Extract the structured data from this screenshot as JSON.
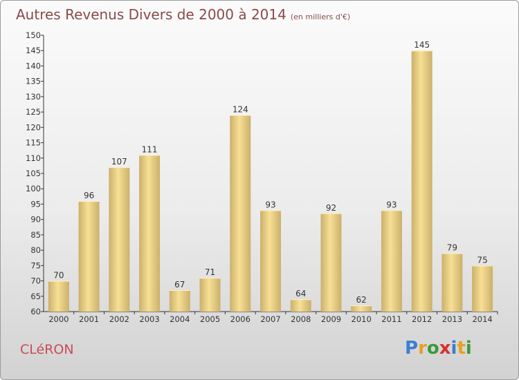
{
  "header": {
    "title": "Autres Revenus Divers de 2000 à 2014",
    "subtitle": "(en milliers d'€)"
  },
  "footer": {
    "commune": "CLéRON",
    "logo_text": "Proxiti",
    "logo_letters": [
      "P",
      "r",
      "o",
      "x",
      "i",
      "t",
      "i"
    ],
    "logo_colors": [
      "#3a7fd0",
      "#e8a020",
      "#3a9a3a",
      "#d83030",
      "#3a7fd0",
      "#e8a020",
      "#3a9a3a"
    ]
  },
  "chart_data": {
    "type": "bar",
    "categories": [
      "2000",
      "2001",
      "2002",
      "2003",
      "2004",
      "2005",
      "2006",
      "2007",
      "2008",
      "2009",
      "2010",
      "2011",
      "2012",
      "2013",
      "2014"
    ],
    "values": [
      70,
      96,
      107,
      111,
      67,
      71,
      124,
      93,
      64,
      92,
      62,
      93,
      145,
      79,
      75
    ],
    "ylim": [
      60,
      150
    ],
    "ytick_step": 5,
    "grid": false,
    "colors": {
      "bar_light": "#f7df94",
      "bar_dark": "#cbb06b",
      "axis": "#333333"
    }
  }
}
